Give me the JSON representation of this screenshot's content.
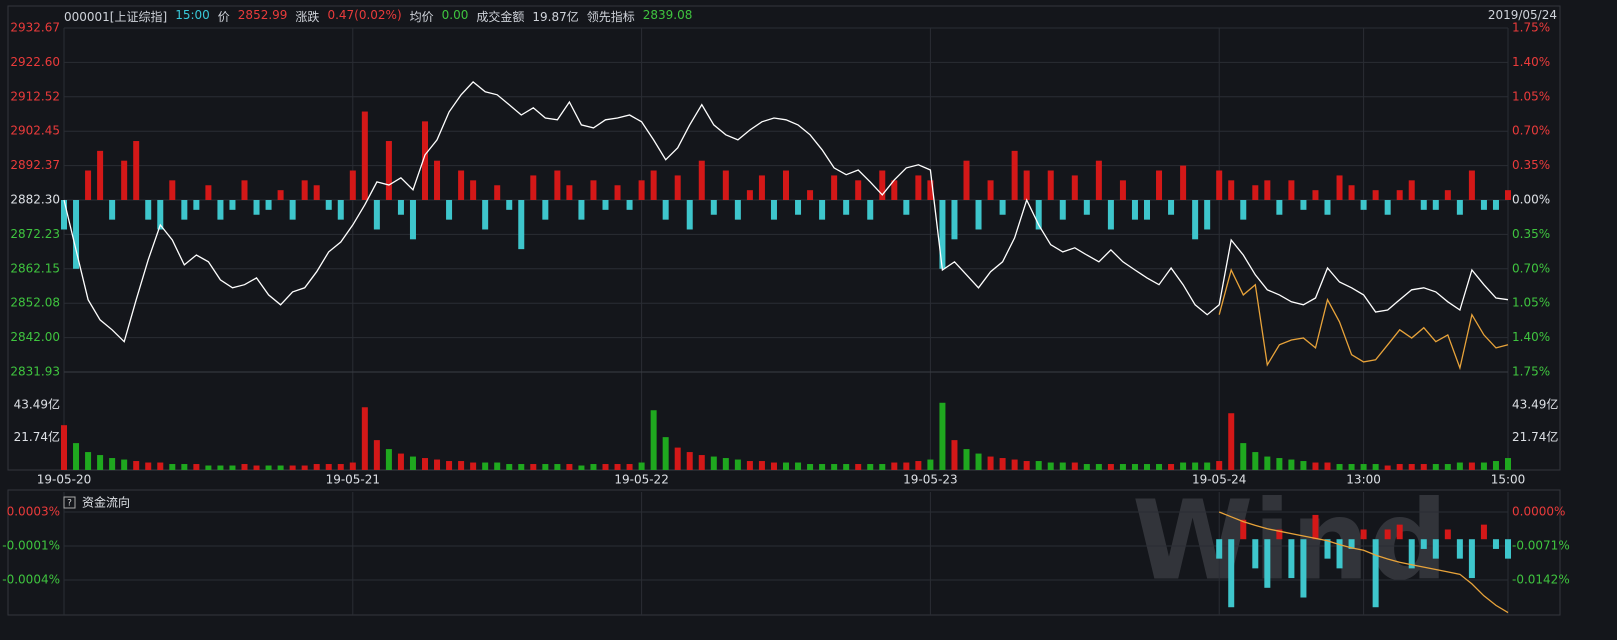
{
  "header": {
    "symbol": "000001[上证综指]",
    "time": "15:00",
    "price_label": "价",
    "price": "2852.99",
    "change_label": "涨跌",
    "change": "0.47(0.02%)",
    "avg_label": "均价",
    "avg": "0.00",
    "amount_label": "成交金额",
    "amount": "19.87亿",
    "lead_label": "领先指标",
    "lead": "2839.08",
    "date": "2019/05/24"
  },
  "watermark": "Wind",
  "chart_data": [
    {
      "type": "line",
      "x": [
        0,
        10,
        20,
        30,
        40,
        50,
        60,
        70,
        80,
        90,
        100,
        110,
        120,
        130,
        140,
        150,
        160,
        170,
        180,
        190,
        200,
        210,
        220,
        230,
        240,
        250,
        260,
        270,
        280,
        290,
        300,
        310,
        320,
        330,
        340,
        350,
        360,
        370,
        380,
        390,
        400,
        410,
        420,
        430,
        440,
        450,
        460,
        470,
        480,
        490,
        500,
        510,
        520,
        530,
        540,
        550,
        560,
        570,
        580,
        590,
        600,
        610,
        620,
        630,
        640,
        650,
        660,
        670,
        680,
        690,
        700,
        710,
        720,
        730,
        740,
        750,
        760,
        770,
        780,
        790,
        800,
        810,
        820,
        830,
        840,
        850,
        860,
        870,
        880,
        890,
        900,
        910,
        920,
        930,
        940,
        950,
        960,
        970,
        980,
        990,
        1000,
        1010,
        1020,
        1030,
        1040,
        1050,
        1060,
        1070,
        1080,
        1090,
        1100,
        1110,
        1120,
        1130,
        1140,
        1150,
        1160,
        1170,
        1180,
        1190,
        1200
      ],
      "xlim": [
        0,
        1200
      ],
      "xticks": [
        {
          "value": 0,
          "label": "19-05-20"
        },
        {
          "value": 240,
          "label": "19-05-21"
        },
        {
          "value": 480,
          "label": "19-05-22"
        },
        {
          "value": 720,
          "label": "19-05-23"
        },
        {
          "value": 960,
          "label": "19-05-24"
        },
        {
          "value": 1080,
          "label": "13:00"
        },
        {
          "value": 1200,
          "label": "15:00"
        }
      ],
      "ylim": [
        2831.93,
        2932.67
      ],
      "yticks": [
        2932.67,
        {
          "value": 2922.6,
          "label": "2922.60"
        },
        2912.52,
        2902.45,
        2892.37,
        {
          "value": 2882.3,
          "label": "2882.30"
        },
        2872.23,
        2862.15,
        2852.08,
        {
          "value": 2842,
          "label": "2842.00"
        },
        2831.93
      ],
      "y2lim": [
        -1.75,
        1.75
      ],
      "y2ticks": [
        {
          "value": 1.75,
          "label": "1.75%"
        },
        {
          "value": 1.4,
          "label": "1.40%"
        },
        {
          "value": 1.05,
          "label": "1.05%"
        },
        {
          "value": 0.7,
          "label": "0.70%"
        },
        {
          "value": 0.35,
          "label": "0.35%"
        },
        {
          "value": 0,
          "label": "0.00%"
        },
        {
          "value": -0.35,
          "label": "0.35%"
        },
        {
          "value": -0.7,
          "label": "0.70%"
        },
        {
          "value": -1.05,
          "label": "1.05%"
        },
        {
          "value": -1.4,
          "label": "1.40%"
        },
        {
          "value": -1.75,
          "label": "1.75%"
        }
      ],
      "grid": true,
      "series": [
        {
          "color": "#ffffff",
          "values": [
            2882.3,
            2867.7,
            2853.1,
            2847.2,
            2844.3,
            2840.8,
            2853.1,
            2864.8,
            2875.0,
            2870.6,
            2863.3,
            2866.2,
            2864.2,
            2858.9,
            2856.6,
            2857.5,
            2859.5,
            2854.5,
            2851.6,
            2855.4,
            2856.6,
            2861.3,
            2867.1,
            2870.0,
            2875.0,
            2880.9,
            2887.6,
            2886.7,
            2888.8,
            2885.3,
            2895.5,
            2899.9,
            2908.1,
            2913.1,
            2916.9,
            2914.0,
            2913.1,
            2910.2,
            2907.2,
            2909.3,
            2906.3,
            2905.8,
            2911.0,
            2904.3,
            2903.4,
            2905.8,
            2906.3,
            2907.2,
            2905.2,
            2899.9,
            2894.1,
            2897.6,
            2904.3,
            2910.2,
            2904.3,
            2901.4,
            2899.9,
            2902.8,
            2905.2,
            2906.3,
            2905.8,
            2904.3,
            2901.4,
            2897.0,
            2891.7,
            2889.7,
            2891.1,
            2887.6,
            2883.8,
            2888.2,
            2891.7,
            2892.6,
            2891.1,
            2861.8,
            2864.2,
            2860.4,
            2856.6,
            2861.3,
            2864.2,
            2871.2,
            2882.3,
            2875.0,
            2869.2,
            2867.1,
            2868.3,
            2866.2,
            2864.2,
            2867.7,
            2864.2,
            2861.8,
            2859.5,
            2857.5,
            2862.4,
            2857.5,
            2851.6,
            2848.7,
            2851.6,
            2870.6,
            2866.2,
            2860.4,
            2856.0,
            2854.5,
            2852.5,
            2851.6,
            2853.6,
            2862.4,
            2858.3,
            2856.6,
            2854.5,
            2849.5,
            2850.1,
            2853.1,
            2856.0,
            2856.6,
            2855.4,
            2852.5,
            2850.1,
            2861.8,
            2857.5,
            2853.6,
            2853.1
          ]
        },
        {
          "color": "#e8a33a",
          "x": [
            960,
            970,
            980,
            990,
            1000,
            1010,
            1020,
            1030,
            1040,
            1050,
            1060,
            1070,
            1080,
            1090,
            1100,
            1110,
            1120,
            1130,
            1140,
            1150,
            1160,
            1170,
            1180,
            1190,
            1200
          ],
          "values": [
            2848.7,
            2861.8,
            2854.5,
            2857.5,
            2834.0,
            2839.9,
            2841.3,
            2841.9,
            2839.0,
            2853.1,
            2846.6,
            2837.0,
            2834.9,
            2835.5,
            2839.9,
            2844.3,
            2841.9,
            2844.9,
            2840.8,
            2842.8,
            2833.1,
            2848.7,
            2842.8,
            2839.0,
            2839.9
          ]
        },
        {
          "type": "bar",
          "axis": "y2",
          "up_color": "#d41818",
          "down_color": "#3ec6cc",
          "values": [
            -0.3,
            -0.7,
            0.3,
            0.5,
            -0.2,
            0.4,
            0.6,
            -0.2,
            -0.3,
            0.2,
            -0.2,
            -0.1,
            0.15,
            -0.2,
            -0.1,
            0.2,
            -0.15,
            -0.1,
            0.1,
            -0.2,
            0.2,
            0.15,
            -0.1,
            -0.2,
            0.3,
            0.9,
            -0.3,
            0.6,
            -0.15,
            -0.4,
            0.8,
            0.4,
            -0.2,
            0.3,
            0.2,
            -0.3,
            0.15,
            -0.1,
            -0.5,
            0.25,
            -0.2,
            0.3,
            0.15,
            -0.2,
            0.2,
            -0.1,
            0.15,
            -0.1,
            0.2,
            0.3,
            -0.2,
            0.25,
            -0.3,
            0.4,
            -0.15,
            0.3,
            -0.2,
            0.1,
            0.25,
            -0.2,
            0.3,
            -0.15,
            0.1,
            -0.2,
            0.25,
            -0.15,
            0.2,
            -0.2,
            0.3,
            0.2,
            -0.15,
            0.25,
            0.2,
            -0.7,
            -0.4,
            0.4,
            -0.3,
            0.2,
            -0.15,
            0.5,
            0.3,
            -0.3,
            0.3,
            -0.2,
            0.25,
            -0.15,
            0.4,
            -0.3,
            0.2,
            -0.2,
            -0.2,
            0.3,
            -0.15,
            0.35,
            -0.4,
            -0.3,
            0.3,
            0.2,
            -0.2,
            0.15,
            0.2,
            -0.15,
            0.2,
            -0.1,
            0.1,
            -0.15,
            0.25,
            0.15,
            -0.1,
            0.1,
            -0.15,
            0.1,
            0.2,
            -0.1,
            -0.1,
            0.1,
            -0.15,
            0.3,
            -0.1,
            -0.1,
            0.1
          ]
        }
      ]
    },
    {
      "type": "bar",
      "ylim": [
        0,
        65.6
      ],
      "yticks": [
        {
          "value": 43.49,
          "label": "43.49亿"
        },
        {
          "value": 21.74,
          "label": "21.74亿"
        }
      ],
      "up_color": "#d41818",
      "down_color": "#1fa81f",
      "values": [
        30,
        18,
        12,
        10,
        8,
        7,
        6,
        5,
        5,
        4,
        4,
        4,
        3,
        3,
        3,
        4,
        3,
        3,
        3,
        3,
        3,
        4,
        4,
        4,
        5,
        42,
        20,
        14,
        11,
        9,
        8,
        7,
        6,
        6,
        5,
        5,
        5,
        4,
        4,
        4,
        4,
        4,
        4,
        3,
        4,
        4,
        4,
        4,
        5,
        40,
        22,
        15,
        12,
        10,
        9,
        8,
        7,
        6,
        6,
        5,
        5,
        5,
        4,
        4,
        4,
        4,
        4,
        4,
        4,
        5,
        5,
        6,
        7,
        45,
        20,
        14,
        11,
        9,
        8,
        7,
        6,
        6,
        5,
        5,
        5,
        4,
        4,
        4,
        4,
        4,
        4,
        4,
        4,
        5,
        5,
        5,
        6,
        38,
        18,
        12,
        9,
        8,
        7,
        6,
        5,
        5,
        4,
        4,
        4,
        4,
        3,
        4,
        4,
        4,
        4,
        4,
        5,
        5,
        5,
        6,
        8
      ]
    },
    {
      "type": "bar",
      "title": "资金流向",
      "help": "?",
      "x": [
        960,
        970,
        980,
        990,
        1000,
        1010,
        1020,
        1030,
        1040,
        1050,
        1060,
        1070,
        1080,
        1090,
        1100,
        1110,
        1120,
        1130,
        1140,
        1150,
        1160,
        1170,
        1180,
        1190,
        1200
      ],
      "ylim": [
        -0.00078,
        0.000486
      ],
      "yticks": [
        {
          "value": 0.00028,
          "label": "0.0003%"
        },
        {
          "value": -7e-05,
          "label": "-0.0001%"
        },
        {
          "value": -0.00042,
          "label": "-0.0004%"
        }
      ],
      "y2lim": [
        -0.0215,
        0.00418
      ],
      "y2ticks": [
        {
          "value": 0,
          "label": "0.0000%"
        },
        {
          "value": -0.0071,
          "label": "-0.0071%"
        },
        {
          "value": -0.0142,
          "label": "-0.0142%"
        }
      ],
      "up_color": "#d41818",
      "down_color": "#3ec6cc",
      "values": [
        -0.0002,
        -0.0007,
        0.0002,
        -0.0003,
        -0.0005,
        0.0001,
        -0.0004,
        -0.0006,
        0.00025,
        -0.0002,
        -0.0003,
        -0.0001,
        0.0001,
        -0.0007,
        0.0001,
        0.00015,
        -0.0003,
        -0.0001,
        -0.0002,
        0.0001,
        -0.0002,
        -0.0004,
        0.00015,
        -0.0001,
        -0.0002
      ],
      "series": [
        {
          "axis": "y2",
          "color": "#e8a33a",
          "values": [
            0,
            -0.001,
            -0.002,
            -0.0028,
            -0.0035,
            -0.004,
            -0.0045,
            -0.005,
            -0.0055,
            -0.006,
            -0.0068,
            -0.0075,
            -0.008,
            -0.009,
            -0.0098,
            -0.0105,
            -0.011,
            -0.0115,
            -0.012,
            -0.0125,
            -0.013,
            -0.015,
            -0.0175,
            -0.0195,
            -0.021
          ]
        }
      ]
    }
  ]
}
